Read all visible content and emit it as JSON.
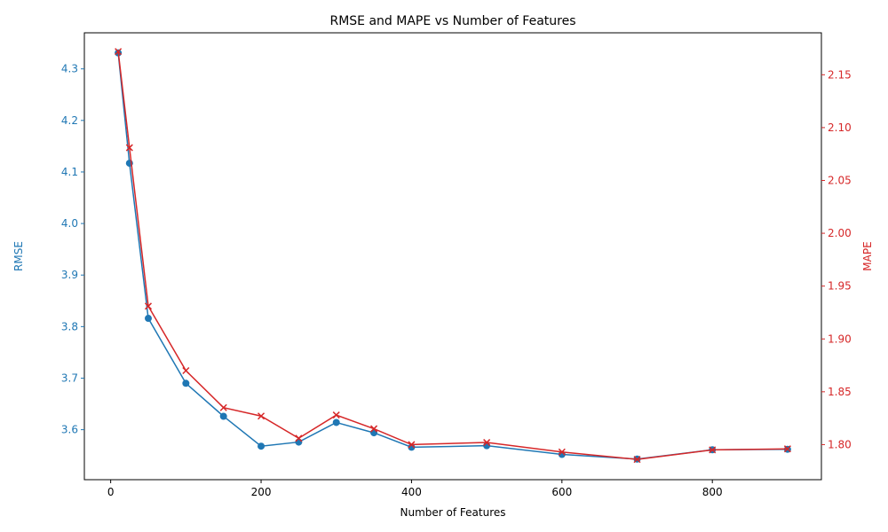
{
  "chart_data": {
    "type": "line",
    "title": "RMSE and MAPE vs Number of Features",
    "xlabel": "Number of Features",
    "x": [
      10,
      25,
      50,
      100,
      150,
      200,
      250,
      300,
      350,
      400,
      500,
      600,
      700,
      800,
      900
    ],
    "xlim": [
      -35,
      945
    ],
    "xticks": [
      0,
      200,
      400,
      600,
      800
    ],
    "series": [
      {
        "name": "RMSE",
        "axis": "left",
        "color": "#1f77b4",
        "marker": "circle",
        "values": [
          4.331,
          4.117,
          3.816,
          3.69,
          3.626,
          3.568,
          3.576,
          3.614,
          3.594,
          3.566,
          3.569,
          3.552,
          3.543,
          3.561,
          3.562
        ]
      },
      {
        "name": "MAPE",
        "axis": "right",
        "color": "#d62728",
        "marker": "x",
        "values": [
          2.172,
          2.081,
          1.931,
          1.87,
          1.835,
          1.827,
          1.806,
          1.828,
          1.815,
          1.8,
          1.802,
          1.793,
          1.786,
          1.795,
          1.796
        ]
      }
    ],
    "left_axis": {
      "label": "RMSE",
      "color": "#1f77b4",
      "ylim": [
        3.503,
        4.37
      ],
      "ticks": [
        3.6,
        3.7,
        3.8,
        3.9,
        4.0,
        4.1,
        4.2,
        4.3
      ],
      "tick_labels": [
        "3.6",
        "3.7",
        "3.8",
        "3.9",
        "4.0",
        "4.1",
        "4.2",
        "4.3"
      ]
    },
    "right_axis": {
      "label": "MAPE",
      "color": "#d62728",
      "ylim": [
        1.7668,
        2.1897
      ],
      "ticks": [
        1.8,
        1.85,
        1.9,
        1.95,
        2.0,
        2.05,
        2.1,
        2.15
      ],
      "tick_labels": [
        "1.80",
        "1.85",
        "1.90",
        "1.95",
        "2.00",
        "2.05",
        "2.10",
        "2.15"
      ]
    },
    "grid": false,
    "legend": false
  }
}
